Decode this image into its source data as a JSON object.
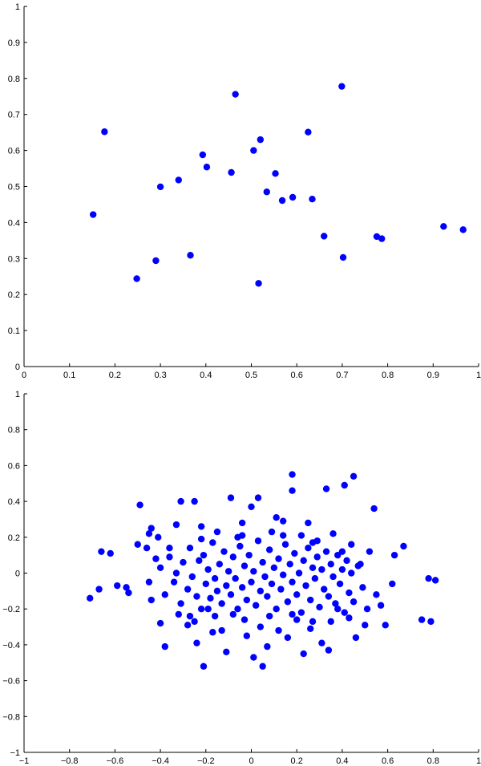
{
  "colors": {
    "marker": "#0000ff",
    "axis": "#000000",
    "background": "#ffffff"
  },
  "chart_data": [
    {
      "type": "scatter",
      "title": "",
      "xlabel": "",
      "ylabel": "",
      "xlim": [
        0,
        1
      ],
      "ylim": [
        0,
        1
      ],
      "xticks": [
        0,
        0.1,
        0.2,
        0.3,
        0.4,
        0.5,
        0.6,
        0.7,
        0.8,
        0.9,
        1
      ],
      "yticks": [
        0,
        0.1,
        0.2,
        0.3,
        0.4,
        0.5,
        0.6,
        0.7,
        0.8,
        0.9,
        1
      ],
      "xtick_labels": [
        "0",
        "0.1",
        "0.2",
        "0.3",
        "0.4",
        "0.5",
        "0.6",
        "0.7",
        "0.8",
        "0.9",
        "1"
      ],
      "ytick_labels": [
        "0",
        "0.1",
        "0.2",
        "0.3",
        "0.4",
        "0.5",
        "0.6",
        "0.7",
        "0.8",
        "0.9",
        "1"
      ],
      "grid": false,
      "legend": "none",
      "points": [
        [
          0.152,
          0.422
        ],
        [
          0.177,
          0.652
        ],
        [
          0.248,
          0.244
        ],
        [
          0.29,
          0.294
        ],
        [
          0.3,
          0.499
        ],
        [
          0.34,
          0.518
        ],
        [
          0.366,
          0.309
        ],
        [
          0.393,
          0.588
        ],
        [
          0.402,
          0.554
        ],
        [
          0.456,
          0.539
        ],
        [
          0.465,
          0.756
        ],
        [
          0.505,
          0.6
        ],
        [
          0.516,
          0.231
        ],
        [
          0.52,
          0.63
        ],
        [
          0.534,
          0.485
        ],
        [
          0.553,
          0.536
        ],
        [
          0.568,
          0.461
        ],
        [
          0.591,
          0.47
        ],
        [
          0.625,
          0.651
        ],
        [
          0.634,
          0.465
        ],
        [
          0.66,
          0.362
        ],
        [
          0.699,
          0.778
        ],
        [
          0.702,
          0.303
        ],
        [
          0.776,
          0.361
        ],
        [
          0.787,
          0.355
        ],
        [
          0.923,
          0.389
        ],
        [
          0.966,
          0.38
        ]
      ]
    },
    {
      "type": "scatter",
      "title": "",
      "xlabel": "",
      "ylabel": "",
      "xlim": [
        -1,
        1
      ],
      "ylim": [
        -1,
        1
      ],
      "xticks": [
        -1,
        -0.8,
        -0.6,
        -0.4,
        -0.2,
        0,
        0.2,
        0.4,
        0.6,
        0.8,
        1
      ],
      "yticks": [
        -1,
        -0.8,
        -0.6,
        -0.4,
        -0.2,
        0,
        0.2,
        0.4,
        0.6,
        0.8,
        1
      ],
      "xtick_labels": [
        "−1",
        "−0.8",
        "−0.6",
        "−0.4",
        "−0.2",
        "0",
        "0.2",
        "0.4",
        "0.6",
        "0.8",
        "1"
      ],
      "ytick_labels": [
        "−1",
        "−0.8",
        "−0.6",
        "−0.4",
        "−0.2",
        "0",
        "0.2",
        "0.4",
        "0.6",
        "0.8",
        "1"
      ],
      "grid": false,
      "legend": "none",
      "points": [
        [
          -0.71,
          -0.14
        ],
        [
          -0.67,
          -0.09
        ],
        [
          -0.66,
          0.12
        ],
        [
          -0.62,
          0.11
        ],
        [
          -0.59,
          -0.07
        ],
        [
          -0.55,
          -0.08
        ],
        [
          -0.54,
          -0.11
        ],
        [
          -0.5,
          0.16
        ],
        [
          -0.49,
          0.38
        ],
        [
          -0.46,
          0.14
        ],
        [
          -0.45,
          0.22
        ],
        [
          -0.44,
          0.25
        ],
        [
          -0.44,
          -0.15
        ],
        [
          -0.41,
          0.2
        ],
        [
          -0.4,
          -0.28
        ],
        [
          -0.38,
          -0.41
        ],
        [
          -0.36,
          0.14
        ],
        [
          -0.33,
          0.27
        ],
        [
          -0.32,
          -0.23
        ],
        [
          -0.31,
          0.4
        ],
        [
          -0.28,
          -0.29
        ],
        [
          -0.27,
          -0.24
        ],
        [
          -0.25,
          0.4
        ],
        [
          -0.24,
          -0.39
        ],
        [
          -0.22,
          0.26
        ],
        [
          -0.21,
          -0.52
        ],
        [
          -0.19,
          -0.2
        ],
        [
          -0.17,
          -0.33
        ],
        [
          -0.15,
          0.23
        ],
        [
          -0.13,
          -0.32
        ],
        [
          -0.11,
          -0.44
        ],
        [
          -0.09,
          0.42
        ],
        [
          -0.08,
          -0.23
        ],
        [
          -0.06,
          0.2
        ],
        [
          -0.04,
          0.28
        ],
        [
          -0.02,
          -0.35
        ],
        [
          0.0,
          0.37
        ],
        [
          0.01,
          -0.47
        ],
        [
          0.03,
          0.42
        ],
        [
          0.04,
          -0.3
        ],
        [
          0.05,
          -0.52
        ],
        [
          0.07,
          -0.41
        ],
        [
          0.09,
          0.23
        ],
        [
          0.11,
          0.31
        ],
        [
          0.12,
          -0.32
        ],
        [
          0.14,
          0.29
        ],
        [
          0.16,
          -0.36
        ],
        [
          0.18,
          0.55
        ],
        [
          0.18,
          0.46
        ],
        [
          0.2,
          -0.26
        ],
        [
          0.22,
          0.21
        ],
        [
          0.23,
          -0.45
        ],
        [
          0.25,
          0.28
        ],
        [
          0.27,
          -0.27
        ],
        [
          0.29,
          0.18
        ],
        [
          0.31,
          -0.39
        ],
        [
          0.33,
          0.47
        ],
        [
          0.34,
          -0.43
        ],
        [
          0.36,
          0.22
        ],
        [
          0.38,
          -0.2
        ],
        [
          0.4,
          0.12
        ],
        [
          0.41,
          0.49
        ],
        [
          0.43,
          -0.25
        ],
        [
          0.45,
          0.54
        ],
        [
          0.46,
          -0.36
        ],
        [
          0.48,
          0.05
        ],
        [
          0.5,
          -0.29
        ],
        [
          0.52,
          0.12
        ],
        [
          0.54,
          0.36
        ],
        [
          0.55,
          -0.12
        ],
        [
          0.57,
          -0.18
        ],
        [
          0.59,
          -0.29
        ],
        [
          0.62,
          -0.06
        ],
        [
          0.63,
          0.1
        ],
        [
          0.67,
          0.15
        ],
        [
          0.75,
          -0.26
        ],
        [
          0.78,
          -0.03
        ],
        [
          0.79,
          -0.27
        ],
        [
          0.81,
          -0.04
        ],
        [
          -0.45,
          -0.05
        ],
        [
          -0.42,
          0.08
        ],
        [
          -0.4,
          0.03
        ],
        [
          -0.38,
          -0.12
        ],
        [
          -0.36,
          0.09
        ],
        [
          -0.34,
          -0.05
        ],
        [
          -0.33,
          0.0
        ],
        [
          -0.31,
          -0.17
        ],
        [
          -0.3,
          0.06
        ],
        [
          -0.28,
          -0.09
        ],
        [
          -0.27,
          0.14
        ],
        [
          -0.26,
          -0.02
        ],
        [
          -0.24,
          -0.13
        ],
        [
          -0.23,
          0.07
        ],
        [
          -0.22,
          -0.2
        ],
        [
          -0.21,
          0.1
        ],
        [
          -0.2,
          -0.06
        ],
        [
          -0.19,
          0.02
        ],
        [
          -0.18,
          -0.14
        ],
        [
          -0.17,
          0.17
        ],
        [
          -0.16,
          -0.03
        ],
        [
          -0.15,
          -0.1
        ],
        [
          -0.14,
          0.05
        ],
        [
          -0.13,
          -0.17
        ],
        [
          -0.12,
          0.12
        ],
        [
          -0.11,
          -0.07
        ],
        [
          -0.1,
          0.01
        ],
        [
          -0.09,
          -0.12
        ],
        [
          -0.08,
          0.09
        ],
        [
          -0.07,
          -0.03
        ],
        [
          -0.06,
          -0.2
        ],
        [
          -0.05,
          0.15
        ],
        [
          -0.04,
          -0.08
        ],
        [
          -0.03,
          0.04
        ],
        [
          -0.02,
          -0.15
        ],
        [
          -0.01,
          0.1
        ],
        [
          0.0,
          -0.05
        ],
        [
          0.01,
          0.01
        ],
        [
          0.02,
          -0.18
        ],
        [
          0.03,
          0.18
        ],
        [
          0.04,
          -0.1
        ],
        [
          0.05,
          0.06
        ],
        [
          0.06,
          -0.02
        ],
        [
          0.07,
          -0.13
        ],
        [
          0.08,
          0.13
        ],
        [
          0.09,
          -0.06
        ],
        [
          0.1,
          0.03
        ],
        [
          0.11,
          -0.2
        ],
        [
          0.12,
          0.08
        ],
        [
          0.13,
          -0.09
        ],
        [
          0.14,
          -0.01
        ],
        [
          0.15,
          0.16
        ],
        [
          0.16,
          -0.16
        ],
        [
          0.17,
          0.05
        ],
        [
          0.18,
          -0.05
        ],
        [
          0.19,
          0.11
        ],
        [
          0.2,
          -0.12
        ],
        [
          0.21,
          0.0
        ],
        [
          0.22,
          -0.22
        ],
        [
          0.23,
          0.07
        ],
        [
          0.24,
          -0.07
        ],
        [
          0.25,
          0.14
        ],
        [
          0.26,
          -0.15
        ],
        [
          0.27,
          0.03
        ],
        [
          0.28,
          -0.03
        ],
        [
          0.29,
          0.09
        ],
        [
          0.3,
          -0.19
        ],
        [
          0.31,
          0.02
        ],
        [
          0.32,
          -0.09
        ],
        [
          0.33,
          0.12
        ],
        [
          0.34,
          -0.13
        ],
        [
          0.35,
          0.05
        ],
        [
          0.36,
          -0.02
        ],
        [
          0.37,
          -0.17
        ],
        [
          0.38,
          0.1
        ],
        [
          0.39,
          -0.06
        ],
        [
          0.4,
          0.02
        ],
        [
          0.41,
          -0.22
        ],
        [
          0.42,
          0.07
        ],
        [
          0.43,
          -0.11
        ],
        [
          0.44,
          0.0
        ],
        [
          0.45,
          -0.16
        ],
        [
          0.47,
          0.04
        ],
        [
          0.49,
          -0.08
        ],
        [
          0.51,
          -0.2
        ],
        [
          -0.25,
          -0.27
        ],
        [
          -0.16,
          -0.24
        ],
        [
          -0.03,
          -0.26
        ],
        [
          0.08,
          -0.24
        ],
        [
          0.18,
          -0.23
        ],
        [
          0.26,
          -0.31
        ],
        [
          0.35,
          -0.27
        ],
        [
          -0.22,
          0.19
        ],
        [
          -0.04,
          0.21
        ],
        [
          0.14,
          0.21
        ],
        [
          0.27,
          0.17
        ],
        [
          0.44,
          0.16
        ]
      ]
    }
  ]
}
